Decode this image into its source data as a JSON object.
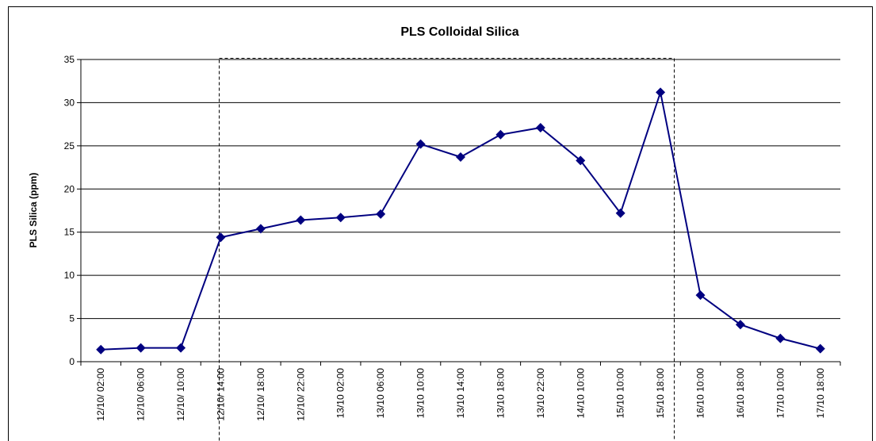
{
  "chart_data": {
    "type": "line",
    "title": "PLS Colloidal Silica",
    "y_label": "PLS Silica (ppm)",
    "categories": [
      "12/10/ 02:00",
      "12/10/ 06:00",
      "12/10/ 10:00",
      "12/10/ 14:00",
      "12/10/ 18:00",
      "12/10/ 22:00",
      "13/10 02:00",
      "13/10 06:00",
      "13/10 10:00",
      "13/10 14:00",
      "13/10 18:00",
      "13/10 22:00",
      "14/10 10:00",
      "15/10 10:00",
      "15/10 18:00",
      "16/10 10:00",
      "16/10 18:00",
      "17/10 10:00",
      "17/10 18:00"
    ],
    "series": [
      {
        "name": "PLS Silica",
        "color": "#000080",
        "values": [
          1.4,
          1.6,
          1.6,
          14.4,
          15.4,
          16.4,
          16.7,
          17.1,
          25.2,
          23.7,
          26.3,
          27.1,
          23.3,
          17.2,
          31.2,
          7.7,
          4.3,
          2.7,
          1.5
        ]
      }
    ],
    "ylim": [
      0,
      35
    ],
    "yticks": [
      0,
      5,
      10,
      15,
      20,
      25,
      30,
      35
    ],
    "grid": true,
    "legend": false
  }
}
